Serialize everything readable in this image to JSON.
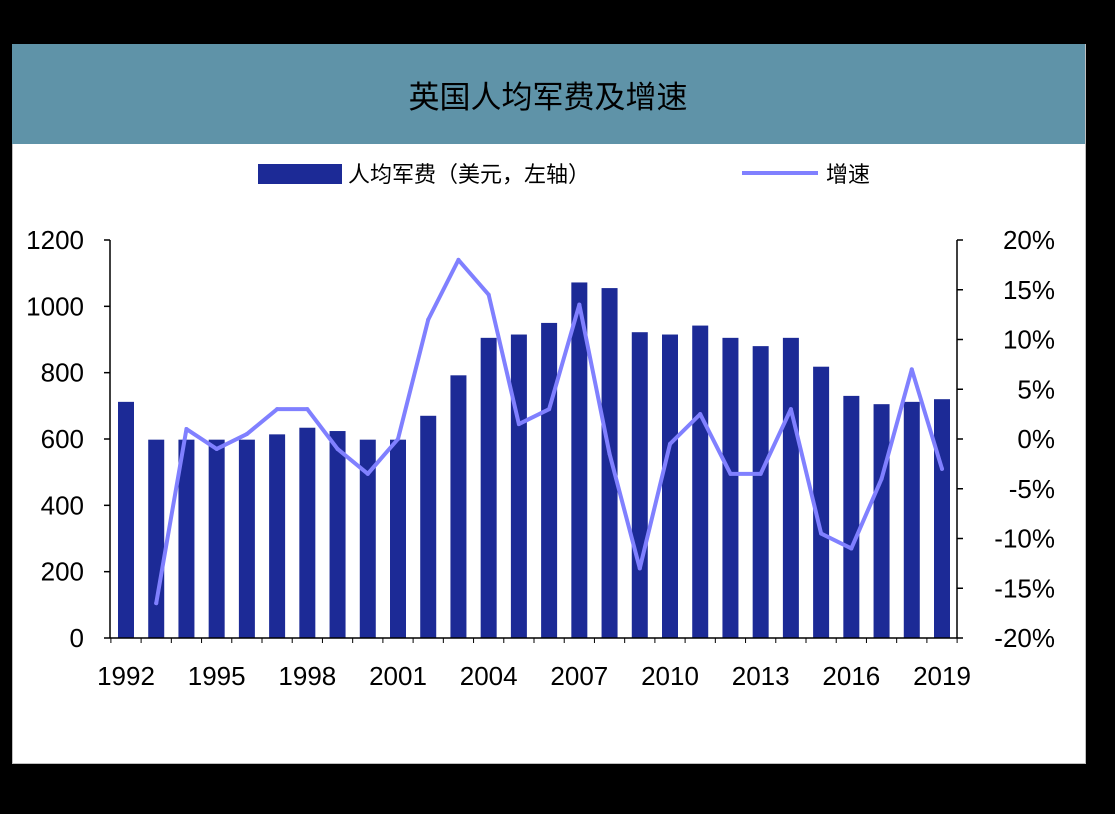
{
  "colors": {
    "background": "#000000",
    "header": "#5f93a8",
    "bars": "#1c2a96",
    "line": "#8080ff",
    "axis": "#000000"
  },
  "chart_data": {
    "type": "bar+line",
    "title": "英国人均军费及增速",
    "legend": [
      "人均军费（美元，左轴）",
      "增速"
    ],
    "x": [
      1992,
      1993,
      1994,
      1995,
      1996,
      1997,
      1998,
      1999,
      2000,
      2001,
      2002,
      2003,
      2004,
      2005,
      2006,
      2007,
      2008,
      2009,
      2010,
      2011,
      2012,
      2013,
      2014,
      2015,
      2016,
      2017,
      2018,
      2019
    ],
    "x_tick_labels": [
      "1992",
      "1995",
      "1998",
      "2001",
      "2004",
      "2007",
      "2010",
      "2013",
      "2016",
      "2019"
    ],
    "series": [
      {
        "name": "人均军费（美元，左轴）",
        "type": "bar",
        "axis": "left",
        "values": [
          712,
          598,
          598,
          598,
          598,
          614,
          634,
          624,
          598,
          598,
          670,
          792,
          905,
          915,
          950,
          1072,
          1055,
          922,
          915,
          942,
          905,
          880,
          905,
          818,
          730,
          705,
          712,
          720
        ]
      },
      {
        "name": "增速",
        "type": "line",
        "axis": "right",
        "values": [
          null,
          -16.5,
          1.0,
          -1.0,
          0.5,
          3.0,
          3.0,
          -1.0,
          -3.5,
          0.0,
          12.0,
          18.0,
          14.5,
          1.5,
          3.0,
          13.5,
          -1.5,
          -13.0,
          -0.5,
          2.5,
          -3.5,
          -3.5,
          3.0,
          -9.5,
          -11.0,
          -4.0,
          7.0,
          -3.0
        ]
      }
    ],
    "y_left": {
      "min": 0,
      "max": 1200,
      "ticks": [
        "0",
        "200",
        "400",
        "600",
        "800",
        "1000",
        "1200"
      ]
    },
    "y_right": {
      "min": -20,
      "max": 20,
      "ticks": [
        "-20%",
        "-15%",
        "-10%",
        "-5%",
        "0%",
        "5%",
        "10%",
        "15%",
        "20%"
      ]
    },
    "legend_position": "top-center"
  }
}
